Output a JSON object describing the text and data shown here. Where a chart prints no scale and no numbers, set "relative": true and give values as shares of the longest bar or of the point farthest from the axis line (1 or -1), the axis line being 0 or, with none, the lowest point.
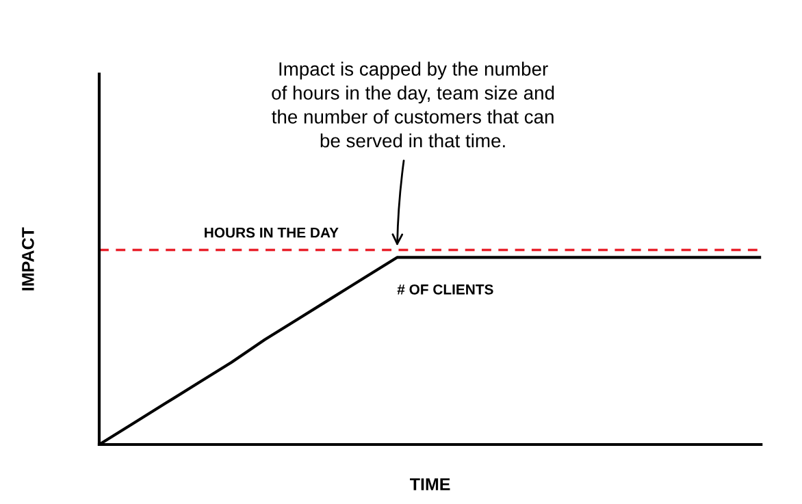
{
  "chart_data": {
    "type": "line",
    "relative": true,
    "xlabel": "TIME",
    "ylabel": "IMPACT",
    "categories": [
      null,
      null,
      null,
      null,
      null,
      null,
      null,
      null,
      null,
      null,
      null,
      null,
      null,
      null,
      null,
      null,
      null,
      null,
      null,
      null,
      null
    ],
    "ylim": [
      0,
      1.98
    ],
    "tick_labels": false,
    "legend": false,
    "marker": "none",
    "line_style": "solid",
    "series": [
      {
        "name": "# OF CLIENTS",
        "color": "#000000",
        "values": [
          0,
          0.11,
          0.22,
          0.33,
          0.44,
          0.56,
          0.67,
          0.78,
          0.89,
          1,
          1,
          1,
          1,
          1,
          1,
          1,
          1,
          1,
          1,
          1,
          1
        ]
      }
    ],
    "ref_lines": [
      {
        "axis": "y",
        "value": 1.04,
        "label": "HOURS IN THE DAY",
        "color": "#e8202a",
        "line_style": "dashed"
      }
    ],
    "annotations": [
      "Impact is capped by the number\nof hours in the day, team size and\nthe number of customers that can\nbe served in that time."
    ]
  }
}
